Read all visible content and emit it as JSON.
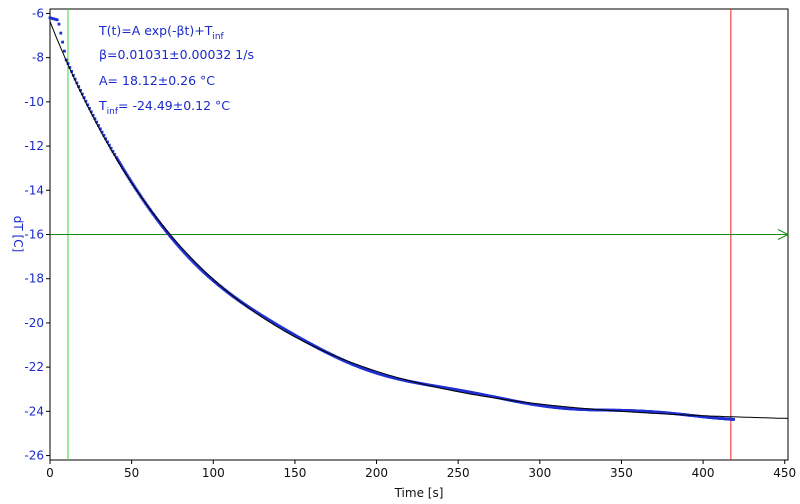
{
  "chart_data": {
    "type": "scatter",
    "title": "",
    "xlabel": "Time [s]",
    "ylabel": "dT [C]",
    "xlim": [
      0,
      452
    ],
    "ylim": [
      -26.2,
      -5.8
    ],
    "x_ticks": [
      0,
      50,
      100,
      150,
      200,
      250,
      300,
      350,
      400,
      450
    ],
    "y_ticks": [
      -6,
      -8,
      -10,
      -12,
      -14,
      -16,
      -18,
      -20,
      -22,
      -24,
      -26
    ],
    "grid": false,
    "annotations": {
      "model": {
        "base": "T(t)=A exp(-βt)+T",
        "sub": "inf"
      },
      "beta": "β=0.01031±0.00032 1/s",
      "amplitude": "A= 18.12±0.26 °C",
      "tinf": {
        "base": "T",
        "sub": "inf",
        "rest": "= -24.49±0.12 °C"
      }
    },
    "fit": {
      "A": 18.12,
      "beta": 0.01031,
      "T_inf": -24.49,
      "x_range": [
        0,
        452
      ]
    },
    "measured": {
      "x_range": [
        0,
        419
      ],
      "plateau_start": {
        "x": 0,
        "y": -6.2
      },
      "plateau_end_x": 5,
      "knee_x": 10
    },
    "markers": {
      "green_vertical_x": 11,
      "red_vertical_x": 417,
      "horizontal_y": -16
    },
    "colors": {
      "data": "#1f2fd0",
      "fit": "#000000",
      "green_line": "#33dd33",
      "red_line": "#ee2222",
      "horizontal_line": "#1a8a1a",
      "frame": "#000000"
    }
  }
}
